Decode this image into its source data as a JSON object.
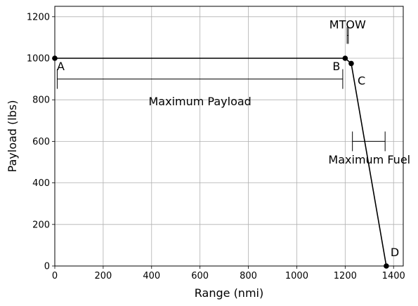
{
  "chart_data": {
    "type": "line",
    "xlabel": "Range (nmi)",
    "ylabel": "Payload (lbs)",
    "xlim": [
      0,
      1440
    ],
    "ylim": [
      0,
      1250
    ],
    "grid": true,
    "x_ticks": [
      0,
      200,
      400,
      600,
      800,
      1000,
      1200,
      1400
    ],
    "y_ticks": [
      0,
      200,
      400,
      600,
      800,
      1000,
      1200
    ],
    "series": [
      {
        "x": [
          0,
          1200,
          1225,
          1370
        ],
        "y": [
          1000,
          1000,
          975,
          0
        ]
      }
    ],
    "points": [
      {
        "label": "A",
        "x": 0,
        "y": 1000
      },
      {
        "label": "B",
        "x": 1200,
        "y": 1000
      },
      {
        "label": "C",
        "x": 1225,
        "y": 975
      },
      {
        "label": "D",
        "x": 1370,
        "y": 0
      }
    ],
    "annotations": [
      {
        "text": "Maximum Payload",
        "x_from": 10,
        "x_to": 1190,
        "y": 900,
        "label_x": 600,
        "label_y": 790
      },
      {
        "text": "Maximum Fuel",
        "x_from": 1230,
        "x_to": 1365,
        "y": 600,
        "label_x": 1300,
        "label_y": 510
      },
      {
        "text": "MTOW",
        "x_from": 1208,
        "x_to": 1213,
        "y": 1110,
        "label_x": 1210,
        "label_y": 1160
      }
    ]
  }
}
